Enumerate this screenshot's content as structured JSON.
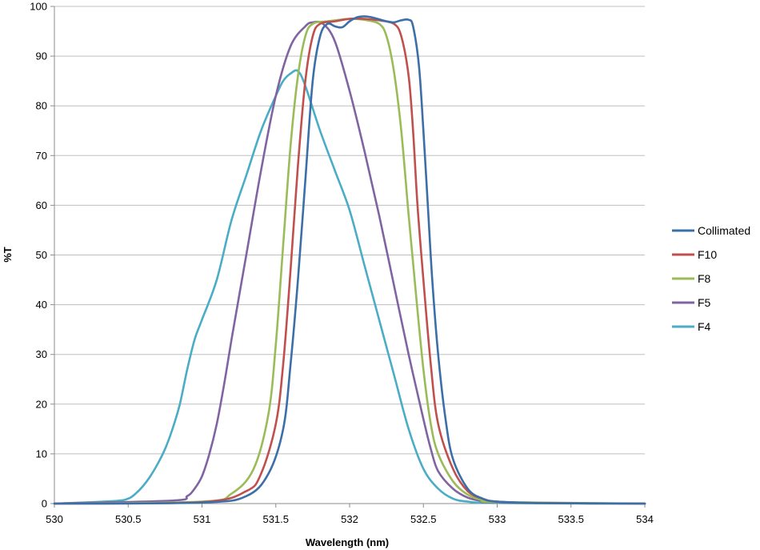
{
  "chart_data": {
    "type": "line",
    "xlabel": "Wavelength (nm)",
    "ylabel": "%T",
    "xlim": [
      530,
      534
    ],
    "ylim": [
      0,
      100
    ],
    "x_ticks": [
      530,
      530.5,
      531,
      531.5,
      532,
      532.5,
      533,
      533.5,
      534
    ],
    "x_tick_labels": [
      "530",
      "530.5",
      "531",
      "531.5",
      "532",
      "532.5",
      "533",
      "533.5",
      "534"
    ],
    "y_ticks": [
      0,
      10,
      20,
      30,
      40,
      50,
      60,
      70,
      80,
      90,
      100
    ],
    "y_tick_labels": [
      "0",
      "10",
      "20",
      "30",
      "40",
      "50",
      "60",
      "70",
      "80",
      "90",
      "100"
    ],
    "grid": "horizontal",
    "legend_position": "right",
    "series": [
      {
        "name": "Collimated",
        "color": "#3C6FA8",
        "points": [
          [
            530,
            0
          ],
          [
            531,
            0.2
          ],
          [
            531.3,
            1.5
          ],
          [
            531.45,
            6
          ],
          [
            531.55,
            15
          ],
          [
            531.6,
            28
          ],
          [
            531.65,
            45
          ],
          [
            531.7,
            65
          ],
          [
            531.75,
            85
          ],
          [
            531.8,
            94
          ],
          [
            531.85,
            96.5
          ],
          [
            531.9,
            96
          ],
          [
            531.95,
            95.8
          ],
          [
            532,
            97
          ],
          [
            532.05,
            97.8
          ],
          [
            532.1,
            98
          ],
          [
            532.15,
            97.8
          ],
          [
            532.25,
            97
          ],
          [
            532.3,
            96.8
          ],
          [
            532.35,
            97.2
          ],
          [
            532.4,
            97.3
          ],
          [
            532.43,
            96
          ],
          [
            532.47,
            88
          ],
          [
            532.5,
            75
          ],
          [
            532.53,
            60
          ],
          [
            532.56,
            45
          ],
          [
            532.6,
            30
          ],
          [
            532.65,
            17
          ],
          [
            532.7,
            9
          ],
          [
            532.8,
            3
          ],
          [
            532.9,
            1
          ],
          [
            533,
            0.4
          ],
          [
            533.3,
            0.1
          ],
          [
            534,
            0
          ]
        ]
      },
      {
        "name": "F10",
        "color": "#C0504D",
        "points": [
          [
            530,
            0
          ],
          [
            531,
            0.3
          ],
          [
            531.3,
            2.5
          ],
          [
            531.4,
            6
          ],
          [
            531.5,
            16
          ],
          [
            531.55,
            28
          ],
          [
            531.6,
            47
          ],
          [
            531.65,
            68
          ],
          [
            531.7,
            85
          ],
          [
            531.75,
            94
          ],
          [
            531.8,
            96.5
          ],
          [
            531.9,
            97
          ],
          [
            532,
            97.5
          ],
          [
            532.1,
            97.5
          ],
          [
            532.2,
            97.2
          ],
          [
            532.3,
            96.5
          ],
          [
            532.35,
            94
          ],
          [
            532.4,
            86
          ],
          [
            532.43,
            75
          ],
          [
            532.46,
            60
          ],
          [
            532.5,
            45
          ],
          [
            532.55,
            28
          ],
          [
            532.6,
            16
          ],
          [
            532.7,
            7
          ],
          [
            532.8,
            2.5
          ],
          [
            532.9,
            1
          ],
          [
            533,
            0.4
          ],
          [
            533.3,
            0.1
          ],
          [
            534,
            0
          ]
        ]
      },
      {
        "name": "F8",
        "color": "#9BBB59",
        "points": [
          [
            530,
            0
          ],
          [
            531,
            0.4
          ],
          [
            531.2,
            2
          ],
          [
            531.35,
            7
          ],
          [
            531.45,
            18
          ],
          [
            531.5,
            32
          ],
          [
            531.55,
            52
          ],
          [
            531.6,
            72
          ],
          [
            531.65,
            86
          ],
          [
            531.7,
            94
          ],
          [
            531.75,
            96.5
          ],
          [
            531.85,
            97
          ],
          [
            532,
            97.5
          ],
          [
            532.1,
            97.3
          ],
          [
            532.2,
            96.5
          ],
          [
            532.25,
            94
          ],
          [
            532.3,
            87
          ],
          [
            532.35,
            75
          ],
          [
            532.4,
            58
          ],
          [
            532.45,
            42
          ],
          [
            532.5,
            27
          ],
          [
            532.55,
            16
          ],
          [
            532.6,
            10
          ],
          [
            532.7,
            4.5
          ],
          [
            532.8,
            1.8
          ],
          [
            532.9,
            0.7
          ],
          [
            533,
            0.3
          ],
          [
            534,
            0
          ]
        ]
      },
      {
        "name": "F5",
        "color": "#8064A2",
        "points": [
          [
            530,
            0
          ],
          [
            530.8,
            0.6
          ],
          [
            530.9,
            1.5
          ],
          [
            530.95,
            3
          ],
          [
            531,
            5.5
          ],
          [
            531.05,
            10
          ],
          [
            531.1,
            16
          ],
          [
            531.15,
            24
          ],
          [
            531.2,
            33
          ],
          [
            531.3,
            50
          ],
          [
            531.4,
            67
          ],
          [
            531.5,
            82
          ],
          [
            531.6,
            92
          ],
          [
            531.7,
            96
          ],
          [
            531.75,
            96.8
          ],
          [
            531.82,
            96.5
          ],
          [
            531.9,
            93
          ],
          [
            532,
            83
          ],
          [
            532.1,
            71
          ],
          [
            532.2,
            58
          ],
          [
            532.3,
            44
          ],
          [
            532.4,
            30
          ],
          [
            532.5,
            17
          ],
          [
            532.55,
            11
          ],
          [
            532.6,
            6.5
          ],
          [
            532.7,
            3
          ],
          [
            532.8,
            1.2
          ],
          [
            532.9,
            0.5
          ],
          [
            533,
            0.2
          ],
          [
            534,
            0
          ]
        ]
      },
      {
        "name": "F4",
        "color": "#4BACC6",
        "points": [
          [
            530,
            0
          ],
          [
            530.4,
            0.5
          ],
          [
            530.5,
            1
          ],
          [
            530.55,
            2
          ],
          [
            530.6,
            3.5
          ],
          [
            530.65,
            5.5
          ],
          [
            530.7,
            8
          ],
          [
            530.75,
            11
          ],
          [
            530.8,
            15
          ],
          [
            530.85,
            20
          ],
          [
            530.9,
            27
          ],
          [
            530.95,
            33
          ],
          [
            531,
            37
          ],
          [
            531.1,
            45
          ],
          [
            531.2,
            57
          ],
          [
            531.3,
            66
          ],
          [
            531.4,
            75
          ],
          [
            531.5,
            82
          ],
          [
            531.55,
            85
          ],
          [
            531.6,
            86.5
          ],
          [
            531.65,
            87
          ],
          [
            531.7,
            84
          ],
          [
            531.8,
            75
          ],
          [
            531.9,
            67
          ],
          [
            532,
            59
          ],
          [
            532.1,
            48
          ],
          [
            532.2,
            37
          ],
          [
            532.3,
            26
          ],
          [
            532.4,
            15
          ],
          [
            532.5,
            7
          ],
          [
            532.6,
            3
          ],
          [
            532.7,
            1
          ],
          [
            532.8,
            0.4
          ],
          [
            533,
            0.1
          ],
          [
            534,
            0
          ]
        ]
      }
    ]
  }
}
